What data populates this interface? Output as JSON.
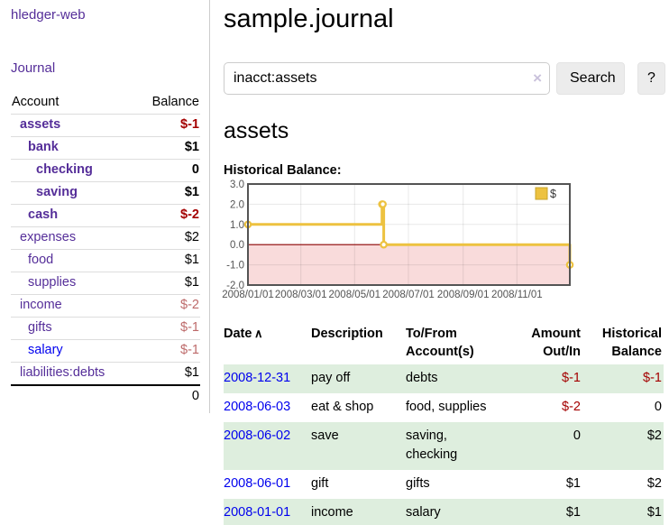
{
  "colors": {
    "link_purple": "#552E99",
    "link_blue": "#0000EE",
    "negative_strong": "#A40000",
    "negative_muted": "#BD6A6A",
    "row_stripe_green": "#DEEEDE",
    "chart_gold": "#EDC240",
    "chart_negative_region": "#F9DBDB",
    "chart_zero_line": "#8B0000",
    "chart_border": "#545454"
  },
  "sidebar": {
    "brand": "hledger-web",
    "nav_journal": "Journal",
    "table": {
      "account_header": "Account",
      "balance_header": "Balance"
    },
    "accounts": [
      {
        "name": "assets",
        "depth": 1,
        "balance": "$-1",
        "bold": true,
        "balance_tone": "negative",
        "link_color": "purple"
      },
      {
        "name": "bank",
        "depth": 2,
        "balance": "$1",
        "bold": true,
        "balance_tone": "normal",
        "link_color": "purple"
      },
      {
        "name": "checking",
        "depth": 3,
        "balance": "0",
        "bold": true,
        "balance_tone": "normal",
        "link_color": "purple"
      },
      {
        "name": "saving",
        "depth": 3,
        "balance": "$1",
        "bold": true,
        "balance_tone": "normal",
        "link_color": "purple"
      },
      {
        "name": "cash",
        "depth": 2,
        "balance": "$-2",
        "bold": true,
        "balance_tone": "negative",
        "link_color": "purple"
      },
      {
        "name": "expenses",
        "depth": 1,
        "balance": "$2",
        "bold": false,
        "balance_tone": "normal",
        "link_color": "purple"
      },
      {
        "name": "food",
        "depth": 2,
        "balance": "$1",
        "bold": false,
        "balance_tone": "normal",
        "link_color": "purple"
      },
      {
        "name": "supplies",
        "depth": 2,
        "balance": "$1",
        "bold": false,
        "balance_tone": "normal",
        "link_color": "purple"
      },
      {
        "name": "income",
        "depth": 1,
        "balance": "$-2",
        "bold": false,
        "balance_tone": "negative_muted",
        "link_color": "purple"
      },
      {
        "name": "gifts",
        "depth": 2,
        "balance": "$-1",
        "bold": false,
        "balance_tone": "negative_muted",
        "link_color": "purple"
      },
      {
        "name": "salary",
        "depth": 2,
        "balance": "$-1",
        "bold": false,
        "balance_tone": "negative_muted",
        "link_color": "blue"
      },
      {
        "name": "liabilities:debts",
        "depth": 1,
        "balance": "$1",
        "bold": false,
        "balance_tone": "normal",
        "link_color": "purple"
      }
    ],
    "total": "0"
  },
  "main": {
    "title": "sample.journal",
    "search": {
      "value": "inacct:assets",
      "clear_label": "×",
      "submit_label": "Search",
      "help_label": "?"
    },
    "account_heading": "assets",
    "chart_label": "Historical Balance:"
  },
  "chart_data": {
    "type": "line",
    "step": true,
    "title": "Historical Balance of assets",
    "legend": {
      "position": "top-right",
      "entries": [
        "$"
      ]
    },
    "x": [
      "2008-01-01",
      "2008-06-01",
      "2008-06-02",
      "2008-06-03",
      "2008-12-31"
    ],
    "series": [
      {
        "name": "$",
        "color": "#EDC240",
        "values": [
          1,
          2,
          2,
          0,
          -1
        ]
      }
    ],
    "ylim": [
      -2,
      3
    ],
    "yticks": [
      3.0,
      2.0,
      1.0,
      0.0,
      -1.0,
      -2.0
    ],
    "ytick_labels": [
      "3.0",
      "2.0",
      "1.0",
      "0.0",
      "-1.0",
      "-2.0"
    ],
    "xticks": [
      "2008-01-01",
      "2008-03-01",
      "2008-05-01",
      "2008-07-01",
      "2008-09-01",
      "2008-11-01"
    ],
    "xtick_labels": [
      "2008/01/01",
      "2008/03/01",
      "2008/05/01",
      "2008/07/01",
      "2008/09/01",
      "2008/11/01"
    ],
    "grid": true,
    "negative_region_below": 0
  },
  "register": {
    "headers": [
      {
        "label": "Date",
        "sorted": "asc",
        "sort_icon": "∧"
      },
      {
        "label": "Description",
        "sorted": "",
        "sort_icon": ""
      },
      {
        "label": "To/From Account(s)",
        "sorted": "",
        "sort_icon": ""
      },
      {
        "label": "Amount Out/In",
        "sorted": "",
        "sort_icon": ""
      },
      {
        "label": "Historical Balance",
        "sorted": "",
        "sort_icon": ""
      }
    ],
    "rows": [
      {
        "date": "2008-12-31",
        "description": "pay off",
        "accounts": "debts",
        "amount": "$-1",
        "amount_negative": true,
        "balance": "$-1",
        "balance_negative": true
      },
      {
        "date": "2008-06-03",
        "description": "eat & shop",
        "accounts": "food, supplies",
        "amount": "$-2",
        "amount_negative": true,
        "balance": "0",
        "balance_negative": false
      },
      {
        "date": "2008-06-02",
        "description": "save",
        "accounts": "saving, checking",
        "amount": "0",
        "amount_negative": false,
        "balance": "$2",
        "balance_negative": false
      },
      {
        "date": "2008-06-01",
        "description": "gift",
        "accounts": "gifts",
        "amount": "$1",
        "amount_negative": false,
        "balance": "$2",
        "balance_negative": false
      },
      {
        "date": "2008-01-01",
        "description": "income",
        "accounts": "salary",
        "amount": "$1",
        "amount_negative": false,
        "balance": "$1",
        "balance_negative": false
      }
    ]
  }
}
